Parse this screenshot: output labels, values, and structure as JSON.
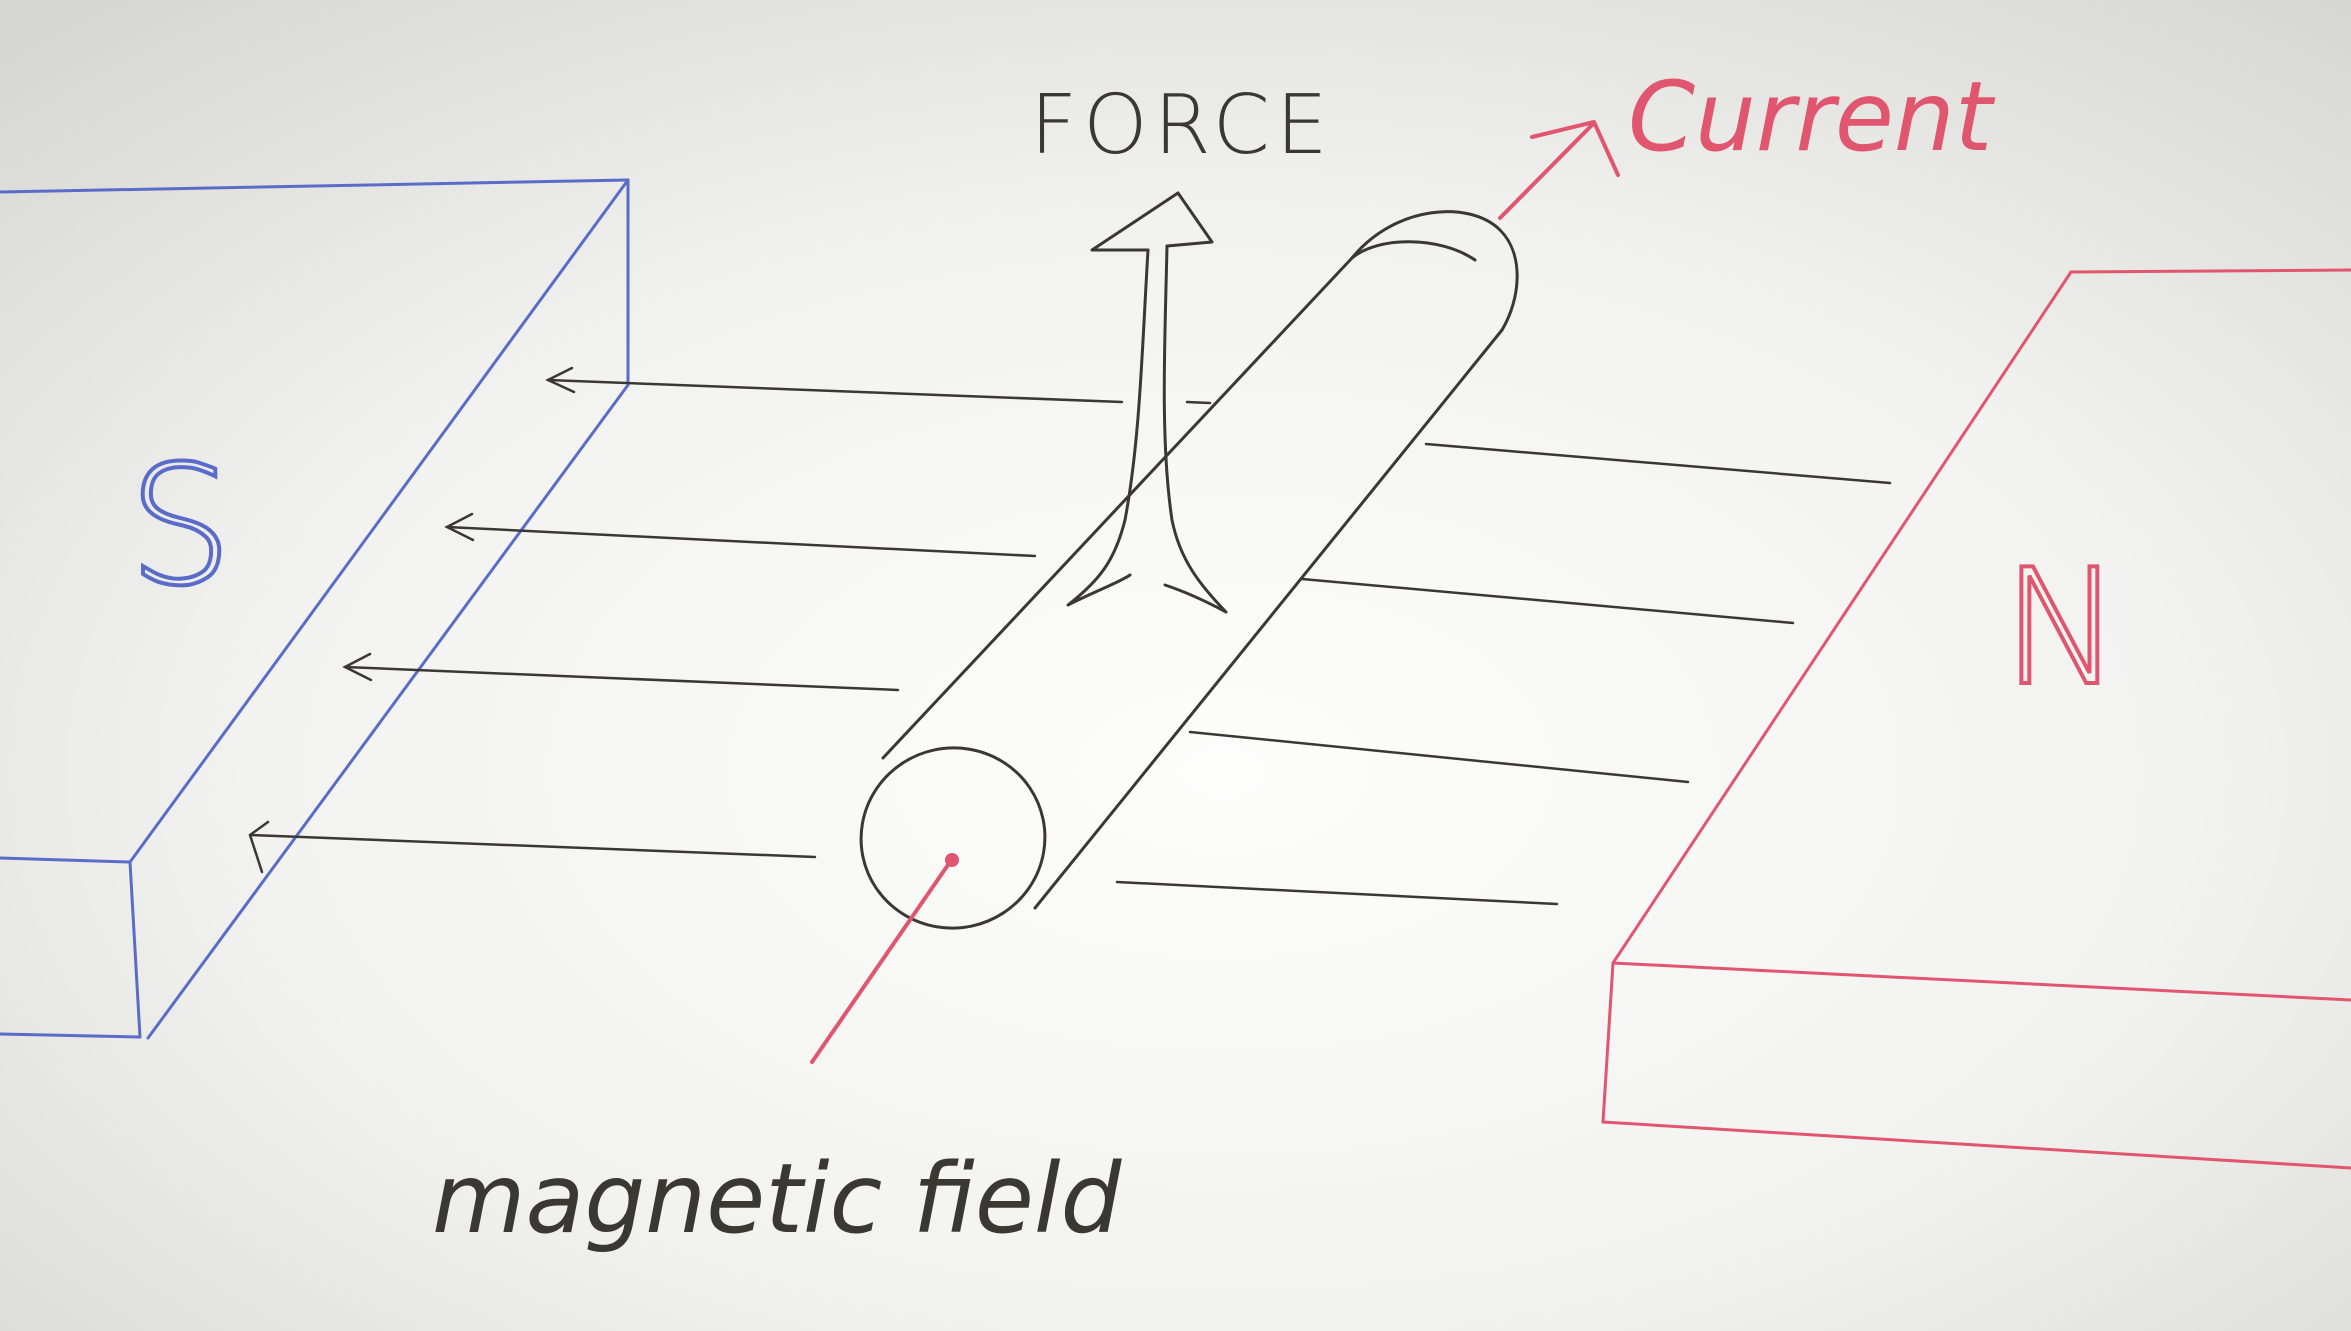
{
  "labels": {
    "force": "FORCE",
    "current": "Current",
    "magnetic_field": "magnetic field",
    "south_pole": "S",
    "north_pole": "N"
  },
  "colors": {
    "board_light": "#fbfbfa",
    "board_shade": "#dcdcd9",
    "ink_black": "#3a3833",
    "ink_red": "#e0566e",
    "ink_blue": "#5b6cc8"
  }
}
